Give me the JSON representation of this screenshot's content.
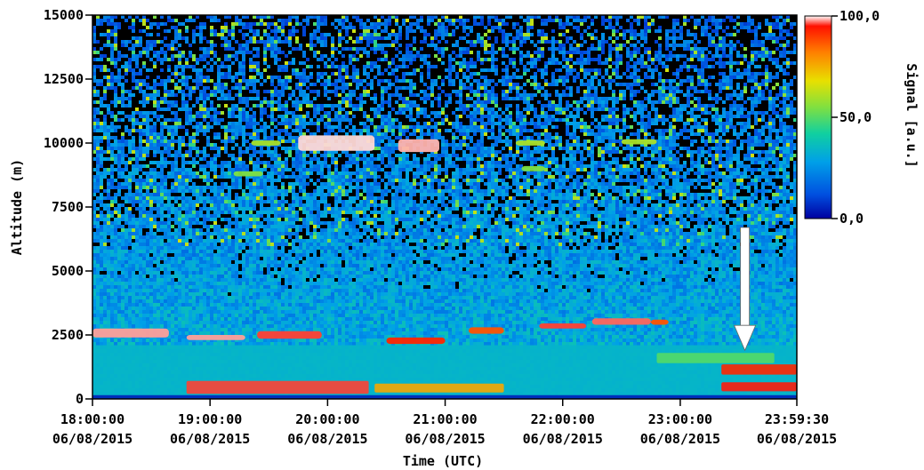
{
  "chart_data": {
    "type": "heatmap",
    "title": "",
    "xlabel": "Time (UTC)",
    "ylabel": "Altitude (m)",
    "colorbar_label": "Signal [a.u.]",
    "x_ticks": [
      {
        "time": "18:00:00",
        "date": "06/08/2015",
        "hours": 0
      },
      {
        "time": "19:00:00",
        "date": "06/08/2015",
        "hours": 1
      },
      {
        "time": "20:00:00",
        "date": "06/08/2015",
        "hours": 2
      },
      {
        "time": "21:00:00",
        "date": "06/08/2015",
        "hours": 3
      },
      {
        "time": "22:00:00",
        "date": "06/08/2015",
        "hours": 4
      },
      {
        "time": "23:00:00",
        "date": "06/08/2015",
        "hours": 5
      },
      {
        "time": "23:59:30",
        "date": "06/08/2015",
        "hours": 5.9917
      }
    ],
    "y_ticks": [
      "0",
      "2500",
      "5000",
      "7500",
      "10000",
      "12500",
      "15000"
    ],
    "y_tick_values": [
      0,
      2500,
      5000,
      7500,
      10000,
      12500,
      15000
    ],
    "xlim_hours": [
      0,
      5.9917
    ],
    "ylim": [
      0,
      15000
    ],
    "colorbar_ticks": [
      "100,0",
      "50,0",
      "0,0"
    ],
    "colorbar_tick_values": [
      100,
      50,
      0
    ],
    "color_range": [
      0,
      100
    ],
    "colormap": [
      "#0000a0",
      "#0050e0",
      "#00a0e8",
      "#10d0a0",
      "#80e040",
      "#e8e000",
      "#ff8000",
      "#ff1000",
      "#ffffff"
    ],
    "features": [
      {
        "kind": "aerosol-layer",
        "hours": [
          0.0,
          5.99
        ],
        "altitude": [
          0,
          2100
        ],
        "signal": 30
      },
      {
        "kind": "surface-layer",
        "hours": [
          0.0,
          5.99
        ],
        "altitude": [
          0,
          150
        ],
        "signal": 5
      },
      {
        "kind": "cloud",
        "hours": [
          0.0,
          0.65
        ],
        "altitude": [
          2400,
          2750
        ],
        "signal": 95
      },
      {
        "kind": "cloud",
        "hours": [
          0.8,
          1.3
        ],
        "altitude": [
          2300,
          2500
        ],
        "signal": 95
      },
      {
        "kind": "cloud",
        "hours": [
          1.4,
          1.95
        ],
        "altitude": [
          2350,
          2650
        ],
        "signal": 90
      },
      {
        "kind": "cloud",
        "hours": [
          2.5,
          3.0
        ],
        "altitude": [
          2150,
          2400
        ],
        "signal": 85
      },
      {
        "kind": "cloud",
        "hours": [
          3.2,
          3.5
        ],
        "altitude": [
          2550,
          2800
        ],
        "signal": 80
      },
      {
        "kind": "cloud",
        "hours": [
          3.8,
          4.2
        ],
        "altitude": [
          2750,
          2950
        ],
        "signal": 90
      },
      {
        "kind": "cloud",
        "hours": [
          4.25,
          4.75
        ],
        "altitude": [
          2900,
          3150
        ],
        "signal": 92
      },
      {
        "kind": "cloud",
        "hours": [
          4.75,
          4.9
        ],
        "altitude": [
          2900,
          3100
        ],
        "signal": 80
      },
      {
        "kind": "cloud",
        "hours": [
          1.75,
          2.4
        ],
        "altitude": [
          9700,
          10300
        ],
        "signal": 98
      },
      {
        "kind": "cloud",
        "hours": [
          2.6,
          2.95
        ],
        "altitude": [
          9650,
          10150
        ],
        "signal": 96
      },
      {
        "kind": "cloud",
        "hours": [
          1.35,
          1.6
        ],
        "altitude": [
          9900,
          10100
        ],
        "signal": 55
      },
      {
        "kind": "cloud",
        "hours": [
          3.6,
          3.85
        ],
        "altitude": [
          9900,
          10100
        ],
        "signal": 55
      },
      {
        "kind": "cloud",
        "hours": [
          4.5,
          4.8
        ],
        "altitude": [
          9950,
          10150
        ],
        "signal": 55
      },
      {
        "kind": "cloud",
        "hours": [
          1.2,
          1.45
        ],
        "altitude": [
          8700,
          8900
        ],
        "signal": 50
      },
      {
        "kind": "cloud",
        "hours": [
          3.65,
          3.85
        ],
        "altitude": [
          8900,
          9100
        ],
        "signal": 50
      },
      {
        "kind": "aerosol-layer",
        "hours": [
          0.8,
          2.35
        ],
        "altitude": [
          200,
          700
        ],
        "signal": 90
      },
      {
        "kind": "aerosol-layer",
        "hours": [
          2.4,
          3.5
        ],
        "altitude": [
          250,
          600
        ],
        "signal": 70
      },
      {
        "kind": "aerosol-layer",
        "hours": [
          5.35,
          5.99
        ],
        "altitude": [
          950,
          1350
        ],
        "signal": 85
      },
      {
        "kind": "aerosol-layer",
        "hours": [
          5.35,
          5.99
        ],
        "altitude": [
          300,
          650
        ],
        "signal": 88
      },
      {
        "kind": "aerosol-layer",
        "hours": [
          4.8,
          5.8
        ],
        "altitude": [
          1400,
          1800
        ],
        "signal": 45
      }
    ],
    "annotations": [
      {
        "kind": "arrow-down",
        "hours": 5.55,
        "altitude_from": 6700,
        "altitude_to": 1900,
        "color": "#ffffff"
      }
    ],
    "grid": false,
    "legend": "colorbar-right"
  }
}
